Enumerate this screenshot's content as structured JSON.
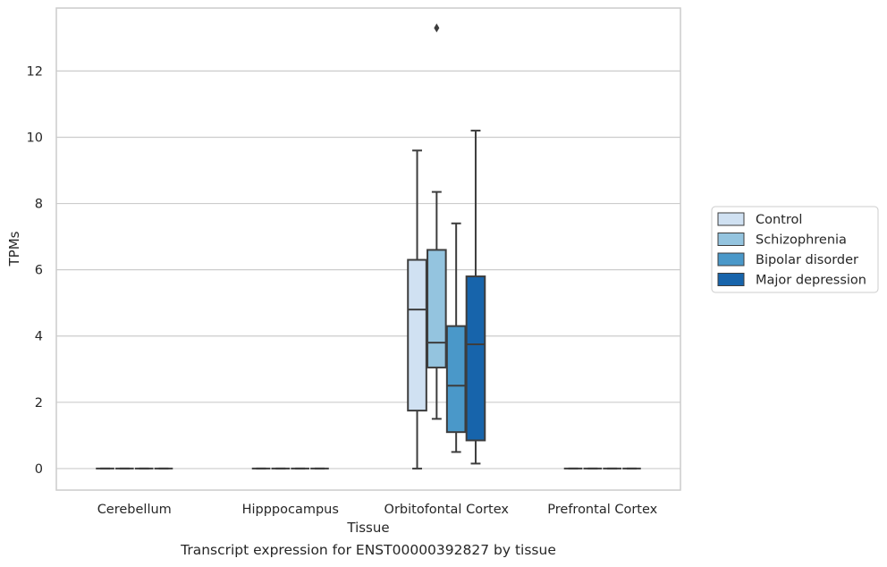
{
  "chart_data": {
    "type": "box",
    "xlabel": "Tissue",
    "ylabel": "TPMs",
    "ylim": [
      -0.65,
      13.9
    ],
    "yticks": [
      0,
      2,
      4,
      6,
      8,
      10,
      12
    ],
    "grid": "horizontal",
    "legend_position": "right",
    "categories": [
      "Cerebellum",
      "Hipppocampus",
      "Orbitofontal Cortex",
      "Prefrontal Cortex"
    ],
    "series": [
      {
        "name": "Control",
        "color": "#d0e1f2",
        "boxes": [
          {
            "category": "Cerebellum",
            "whisker_low": 0,
            "q1": 0,
            "median": 0,
            "q3": 0,
            "whisker_high": 0,
            "outliers": []
          },
          {
            "category": "Hipppocampus",
            "whisker_low": 0,
            "q1": 0,
            "median": 0,
            "q3": 0,
            "whisker_high": 0,
            "outliers": []
          },
          {
            "category": "Orbitofontal Cortex",
            "whisker_low": 0,
            "q1": 1.75,
            "median": 4.8,
            "q3": 6.3,
            "whisker_high": 9.6,
            "outliers": []
          },
          {
            "category": "Prefrontal Cortex",
            "whisker_low": 0,
            "q1": 0,
            "median": 0,
            "q3": 0,
            "whisker_high": 0,
            "outliers": []
          }
        ]
      },
      {
        "name": "Schizophrenia",
        "color": "#94c4df",
        "boxes": [
          {
            "category": "Cerebellum",
            "whisker_low": 0,
            "q1": 0,
            "median": 0,
            "q3": 0,
            "whisker_high": 0,
            "outliers": []
          },
          {
            "category": "Hipppocampus",
            "whisker_low": 0,
            "q1": 0,
            "median": 0,
            "q3": 0,
            "whisker_high": 0,
            "outliers": []
          },
          {
            "category": "Orbitofontal Cortex",
            "whisker_low": 1.5,
            "q1": 3.05,
            "median": 3.8,
            "q3": 6.6,
            "whisker_high": 8.35,
            "outliers": [
              13.3
            ]
          },
          {
            "category": "Prefrontal Cortex",
            "whisker_low": 0,
            "q1": 0,
            "median": 0,
            "q3": 0,
            "whisker_high": 0,
            "outliers": []
          }
        ]
      },
      {
        "name": "Bipolar disorder",
        "color": "#4a98c9",
        "boxes": [
          {
            "category": "Cerebellum",
            "whisker_low": 0,
            "q1": 0,
            "median": 0,
            "q3": 0,
            "whisker_high": 0,
            "outliers": []
          },
          {
            "category": "Hipppocampus",
            "whisker_low": 0,
            "q1": 0,
            "median": 0,
            "q3": 0,
            "whisker_high": 0,
            "outliers": []
          },
          {
            "category": "Orbitofontal Cortex",
            "whisker_low": 0.5,
            "q1": 1.1,
            "median": 2.5,
            "q3": 4.3,
            "whisker_high": 7.4,
            "outliers": []
          },
          {
            "category": "Prefrontal Cortex",
            "whisker_low": 0,
            "q1": 0,
            "median": 0,
            "q3": 0,
            "whisker_high": 0,
            "outliers": []
          }
        ]
      },
      {
        "name": "Major depression",
        "color": "#1764ab",
        "boxes": [
          {
            "category": "Cerebellum",
            "whisker_low": 0,
            "q1": 0,
            "median": 0,
            "q3": 0,
            "whisker_high": 0,
            "outliers": []
          },
          {
            "category": "Hipppocampus",
            "whisker_low": 0,
            "q1": 0,
            "median": 0,
            "q3": 0,
            "whisker_high": 0,
            "outliers": []
          },
          {
            "category": "Orbitofontal Cortex",
            "whisker_low": 0.15,
            "q1": 0.85,
            "median": 3.75,
            "q3": 5.8,
            "whisker_high": 10.2,
            "outliers": []
          },
          {
            "category": "Prefrontal Cortex",
            "whisker_low": 0,
            "q1": 0,
            "median": 0,
            "q3": 0,
            "whisker_high": 0,
            "outliers": []
          }
        ]
      }
    ]
  },
  "caption": "Transcript expression for ENST00000392827 by tissue"
}
